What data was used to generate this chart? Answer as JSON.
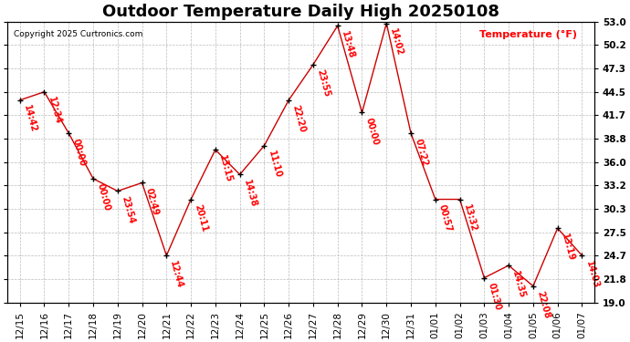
{
  "title": "Outdoor Temperature Daily High 20250108",
  "copyright": "Copyright 2025 Curtronics.com",
  "ylabel": "Temperature (°F)",
  "dates": [
    "12/15",
    "12/16",
    "12/17",
    "12/18",
    "12/19",
    "12/20",
    "12/21",
    "12/22",
    "12/23",
    "12/24",
    "12/25",
    "12/26",
    "12/27",
    "12/28",
    "12/29",
    "12/30",
    "12/31",
    "01/01",
    "01/02",
    "01/03",
    "01/04",
    "01/05",
    "01/06",
    "01/07"
  ],
  "temps": [
    43.5,
    44.5,
    39.5,
    34.0,
    32.5,
    33.5,
    24.7,
    31.5,
    37.5,
    34.5,
    38.0,
    43.5,
    47.8,
    52.5,
    42.0,
    52.8,
    39.5,
    31.5,
    31.5,
    22.0,
    23.5,
    21.0,
    28.0,
    24.7
  ],
  "times": [
    "14:42",
    "12:34",
    "00:00",
    "00:00",
    "23:54",
    "02:49",
    "12:44",
    "20:11",
    "13:15",
    "14:38",
    "11:10",
    "22:20",
    "23:55",
    "13:48",
    "00:00",
    "14:02",
    "07:22",
    "00:57",
    "13:32",
    "01:30",
    "14:35",
    "22:08",
    "13:19",
    "14:03"
  ],
  "ylim_min": 19.0,
  "ylim_max": 53.0,
  "yticks": [
    19.0,
    21.8,
    24.7,
    27.5,
    30.3,
    33.2,
    36.0,
    38.8,
    41.7,
    44.5,
    47.3,
    50.2,
    53.0
  ],
  "line_color": "#cc0000",
  "marker_color": "black",
  "label_color": "red",
  "background_color": "white",
  "grid_color": "#aaaaaa",
  "title_fontsize": 13,
  "label_fontsize": 8,
  "tick_fontsize": 7.5,
  "annotation_fontsize": 7
}
